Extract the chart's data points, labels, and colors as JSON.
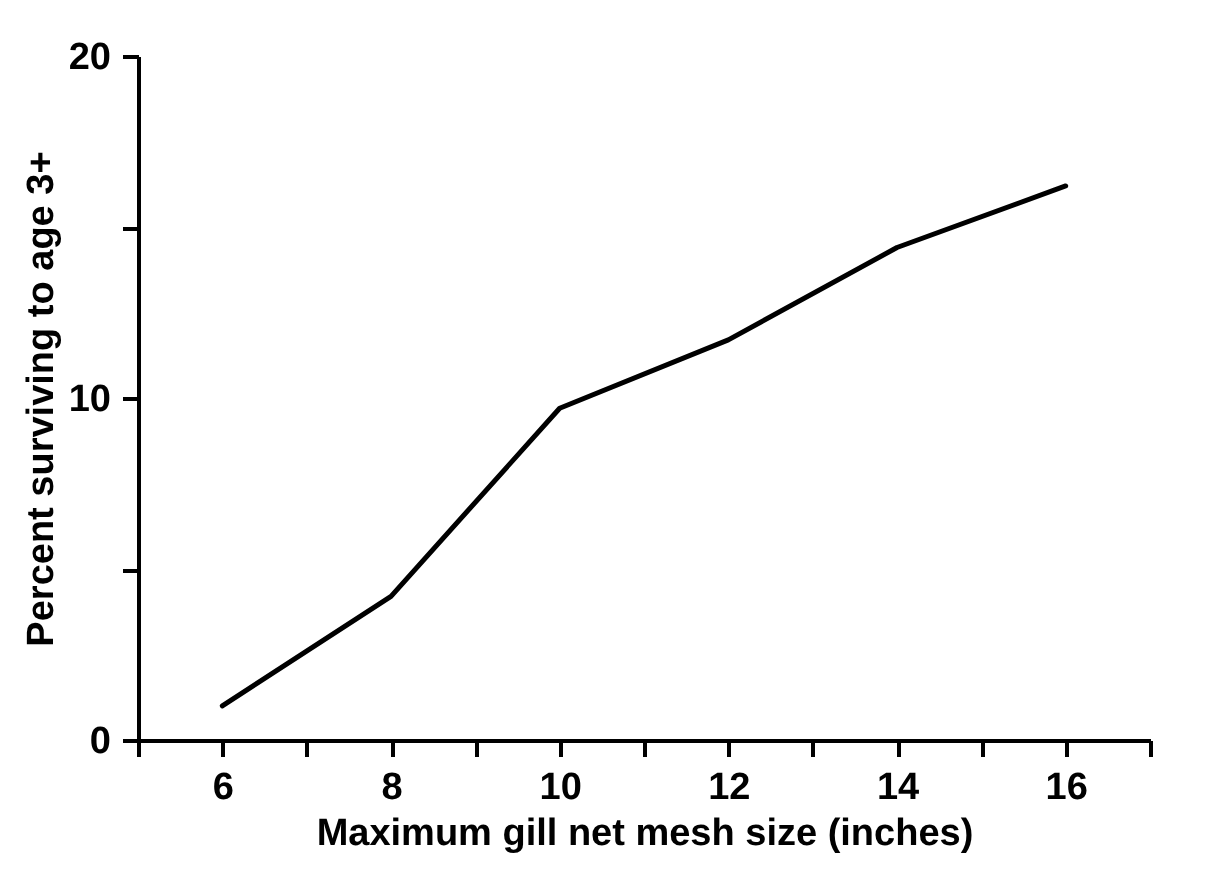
{
  "chart_data": {
    "type": "line",
    "xlabel": "Maximum gill net mesh size (inches)",
    "ylabel": "Percent surviving to age 3+",
    "x": [
      6,
      8,
      10,
      12,
      14,
      16
    ],
    "series": [
      {
        "color": "#000000",
        "values": [
          1.0,
          4.2,
          9.7,
          11.7,
          14.4,
          16.2
        ]
      }
    ],
    "xlim": [
      5,
      17
    ],
    "xticks": [
      {
        "value": 5,
        "label": null
      },
      6,
      {
        "value": 7,
        "label": null
      },
      8,
      {
        "value": 9,
        "label": null
      },
      10,
      {
        "value": 11,
        "label": null
      },
      12,
      {
        "value": 13,
        "label": null
      },
      14,
      {
        "value": 15,
        "label": null
      },
      16,
      {
        "value": 17,
        "label": null
      }
    ],
    "ylim": [
      0,
      20
    ],
    "yticks": [
      0,
      {
        "value": 5,
        "label": null
      },
      10,
      {
        "value": 15,
        "label": null
      },
      20
    ],
    "grid": false,
    "marker": "none",
    "line_style": "solid"
  }
}
